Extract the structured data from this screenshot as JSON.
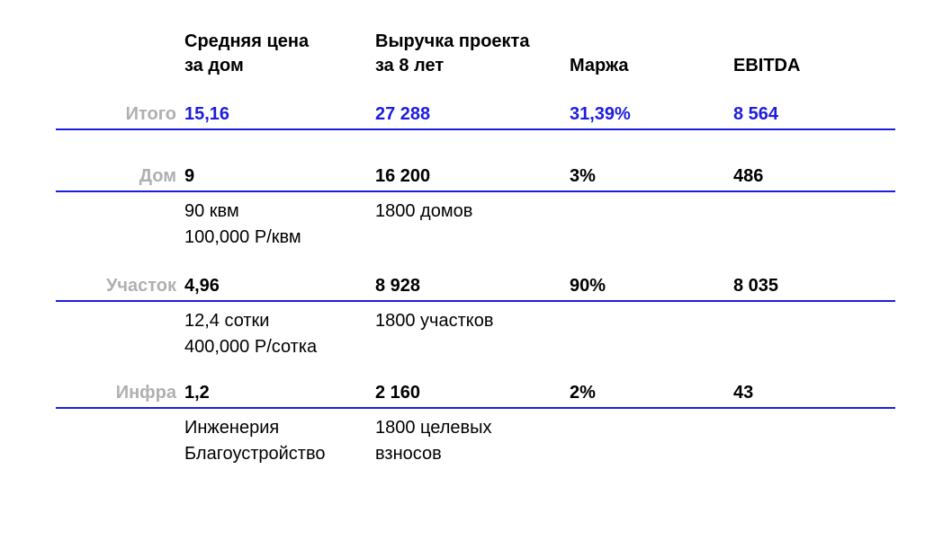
{
  "header": {
    "avg_price": {
      "line1": "Средняя цена",
      "line2": "за дом"
    },
    "revenue": {
      "line1": "Выручка проекта",
      "line2": "за 8 лет"
    },
    "margin": "Маржа",
    "ebitda": "EBITDA"
  },
  "rows": [
    {
      "label": "Итого",
      "values": [
        "15,16",
        "27 288",
        "31,39%",
        "8 564"
      ]
    },
    {
      "label": "Дом",
      "values": [
        "9",
        "16 200",
        "3%",
        "486"
      ],
      "sub": {
        "col1": [
          "90 квм",
          "100,000 Р/квм"
        ],
        "col2": [
          "1800 домов"
        ]
      }
    },
    {
      "label": "Участок",
      "values": [
        "4,96",
        "8 928",
        "90%",
        "8 035"
      ],
      "sub": {
        "col1": [
          "12,4 сотки",
          "400,000 Р/сотка"
        ],
        "col2": [
          "1800 участков"
        ]
      }
    },
    {
      "label": "Инфра",
      "values": [
        "1,2",
        "2 160",
        "2%",
        "43"
      ],
      "sub": {
        "col1": [
          "Инженерия",
          "Благоустройство"
        ],
        "col2": [
          "1800 целевых",
          "взносов"
        ]
      }
    }
  ],
  "colors": {
    "accent_blue": "#1d1ddd",
    "label_gray": "#b0b0b3",
    "text_black": "#000000"
  }
}
